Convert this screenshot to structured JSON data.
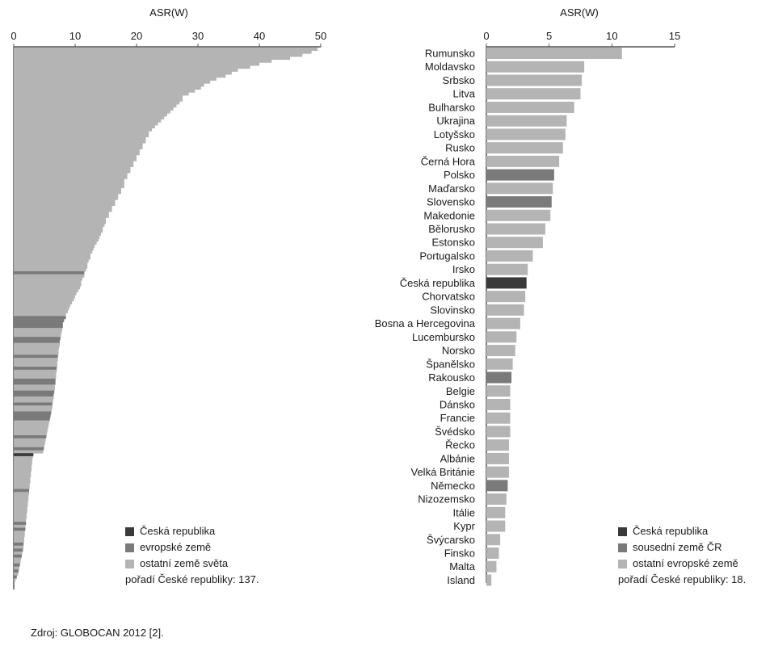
{
  "colors": {
    "czech": "#3a3a3a",
    "european": "#7a7a7a",
    "other": "#b4b4b4",
    "axis": "#555555"
  },
  "chart_data": [
    {
      "type": "bar",
      "orientation": "horizontal",
      "xlabel": "ASR(W)",
      "xlim": [
        0,
        50
      ],
      "xticks": [
        0,
        10,
        20,
        30,
        40,
        50
      ],
      "ticks_position": "top",
      "grid": false,
      "legend_position": "bottom-right",
      "legend": [
        {
          "label": "Česká republika",
          "color_key": "czech"
        },
        {
          "label": "evropské země",
          "color_key": "european"
        },
        {
          "label": "ostatní země světa",
          "color_key": "other"
        }
      ],
      "rank_note": "pořadí České republiky: 137.",
      "values": [
        49.5,
        48.5,
        47.0,
        45.0,
        42.0,
        40.0,
        38.5,
        36.5,
        35.5,
        34.5,
        33.0,
        32.0,
        31.0,
        30.5,
        29.5,
        28.5,
        27.5,
        27.5,
        27.0,
        26.5,
        26.0,
        25.5,
        25.0,
        24.5,
        24.0,
        23.5,
        23.0,
        22.5,
        22.0,
        22.0,
        21.5,
        21.5,
        21.0,
        21.0,
        20.5,
        20.5,
        20.0,
        20.0,
        19.5,
        19.5,
        19.0,
        19.0,
        18.5,
        18.5,
        18.0,
        18.0,
        18.0,
        17.5,
        17.5,
        17.0,
        17.0,
        16.5,
        16.5,
        16.0,
        16.0,
        15.5,
        15.5,
        15.0,
        15.0,
        14.8,
        14.5,
        14.5,
        14.2,
        14.0,
        13.8,
        13.5,
        13.2,
        13.0,
        12.8,
        12.5,
        12.5,
        12.2,
        12.0,
        12.0,
        11.8,
        11.5,
        11.5,
        11.2,
        11.0,
        11.0,
        10.8,
        10.5,
        10.2,
        10.0,
        9.8,
        9.5,
        9.2,
        9.0,
        8.8,
        8.5,
        8.5,
        8.2,
        8.0,
        8.0,
        7.9,
        7.8,
        7.7,
        7.6,
        7.5,
        7.5,
        7.4,
        7.3,
        7.3,
        7.2,
        7.2,
        7.1,
        7.1,
        7.0,
        7.0,
        6.9,
        6.9,
        6.8,
        6.8,
        6.7,
        6.7,
        6.6,
        6.5,
        6.5,
        6.4,
        6.3,
        6.3,
        6.2,
        6.1,
        6.0,
        5.9,
        5.8,
        5.7,
        5.6,
        5.5,
        5.4,
        5.3,
        5.2,
        5.1,
        5.0,
        4.9,
        4.8,
        3.2,
        3.1,
        3.0,
        3.0,
        2.9,
        2.9,
        2.8,
        2.8,
        2.7,
        2.7,
        2.6,
        2.6,
        2.5,
        2.5,
        2.4,
        2.4,
        2.3,
        2.3,
        2.2,
        2.2,
        2.1,
        2.1,
        2.0,
        2.0,
        1.9,
        1.9,
        1.8,
        1.8,
        1.7,
        1.7,
        1.6,
        1.6,
        1.5,
        1.4,
        1.3,
        1.2,
        1.1,
        1.0,
        0.9,
        0.8,
        0.7,
        0.5,
        0.3
      ],
      "european_ranks": [
        76,
        91,
        92,
        93,
        94,
        98,
        99,
        104,
        108,
        112,
        113,
        116,
        117,
        120,
        123,
        124,
        125,
        131,
        135,
        149,
        160,
        162,
        167,
        169,
        171,
        174,
        176,
        178,
        182
      ],
      "czech_rank": 137
    },
    {
      "type": "bar",
      "orientation": "horizontal",
      "xlabel": "ASR(W)",
      "xlim": [
        0,
        15
      ],
      "xticks": [
        0,
        5,
        10,
        15
      ],
      "ticks_position": "top",
      "grid": false,
      "legend_position": "bottom-right",
      "legend": [
        {
          "label": "Česká republika",
          "color_key": "czech"
        },
        {
          "label": "sousední země ČR",
          "color_key": "european"
        },
        {
          "label": "ostatní evropské země",
          "color_key": "other"
        }
      ],
      "rank_note": "pořadí České republiky: 18.",
      "categories": [
        "Rumunsko",
        "Moldavsko",
        "Srbsko",
        "Litva",
        "Bulharsko",
        "Ukrajina",
        "Lotyšsko",
        "Rusko",
        "Černá Hora",
        "Polsko",
        "Maďarsko",
        "Slovensko",
        "Makedonie",
        "Bělorusko",
        "Estonsko",
        "Portugalsko",
        "Irsko",
        "Česká republika",
        "Chorvatsko",
        "Slovinsko",
        "Bosna a Hercegovina",
        "Lucembursko",
        "Norsko",
        "Španělsko",
        "Rakousko",
        "Belgie",
        "Dánsko",
        "Francie",
        "Švédsko",
        "Řecko",
        "Albánie",
        "Velká Británie",
        "Německo",
        "Nizozemsko",
        "Itálie",
        "Kypr",
        "Švýcarsko",
        "Finsko",
        "Malta",
        "Island"
      ],
      "values": [
        10.8,
        7.8,
        7.6,
        7.5,
        7.0,
        6.4,
        6.3,
        6.1,
        5.8,
        5.4,
        5.3,
        5.2,
        5.1,
        4.7,
        4.5,
        3.7,
        3.3,
        3.2,
        3.1,
        3.0,
        2.7,
        2.4,
        2.3,
        2.1,
        2.0,
        1.9,
        1.9,
        1.9,
        1.9,
        1.8,
        1.8,
        1.8,
        1.7,
        1.6,
        1.5,
        1.5,
        1.1,
        1.0,
        0.8,
        0.4
      ],
      "groups": [
        "other",
        "other",
        "other",
        "other",
        "other",
        "other",
        "other",
        "other",
        "other",
        "european",
        "other",
        "european",
        "other",
        "other",
        "other",
        "other",
        "other",
        "czech",
        "other",
        "other",
        "other",
        "other",
        "other",
        "other",
        "european",
        "other",
        "other",
        "other",
        "other",
        "other",
        "other",
        "other",
        "european",
        "other",
        "other",
        "other",
        "other",
        "other",
        "other",
        "other"
      ]
    }
  ],
  "source_note": "Zdroj: GLOBOCAN 2012 [2]."
}
